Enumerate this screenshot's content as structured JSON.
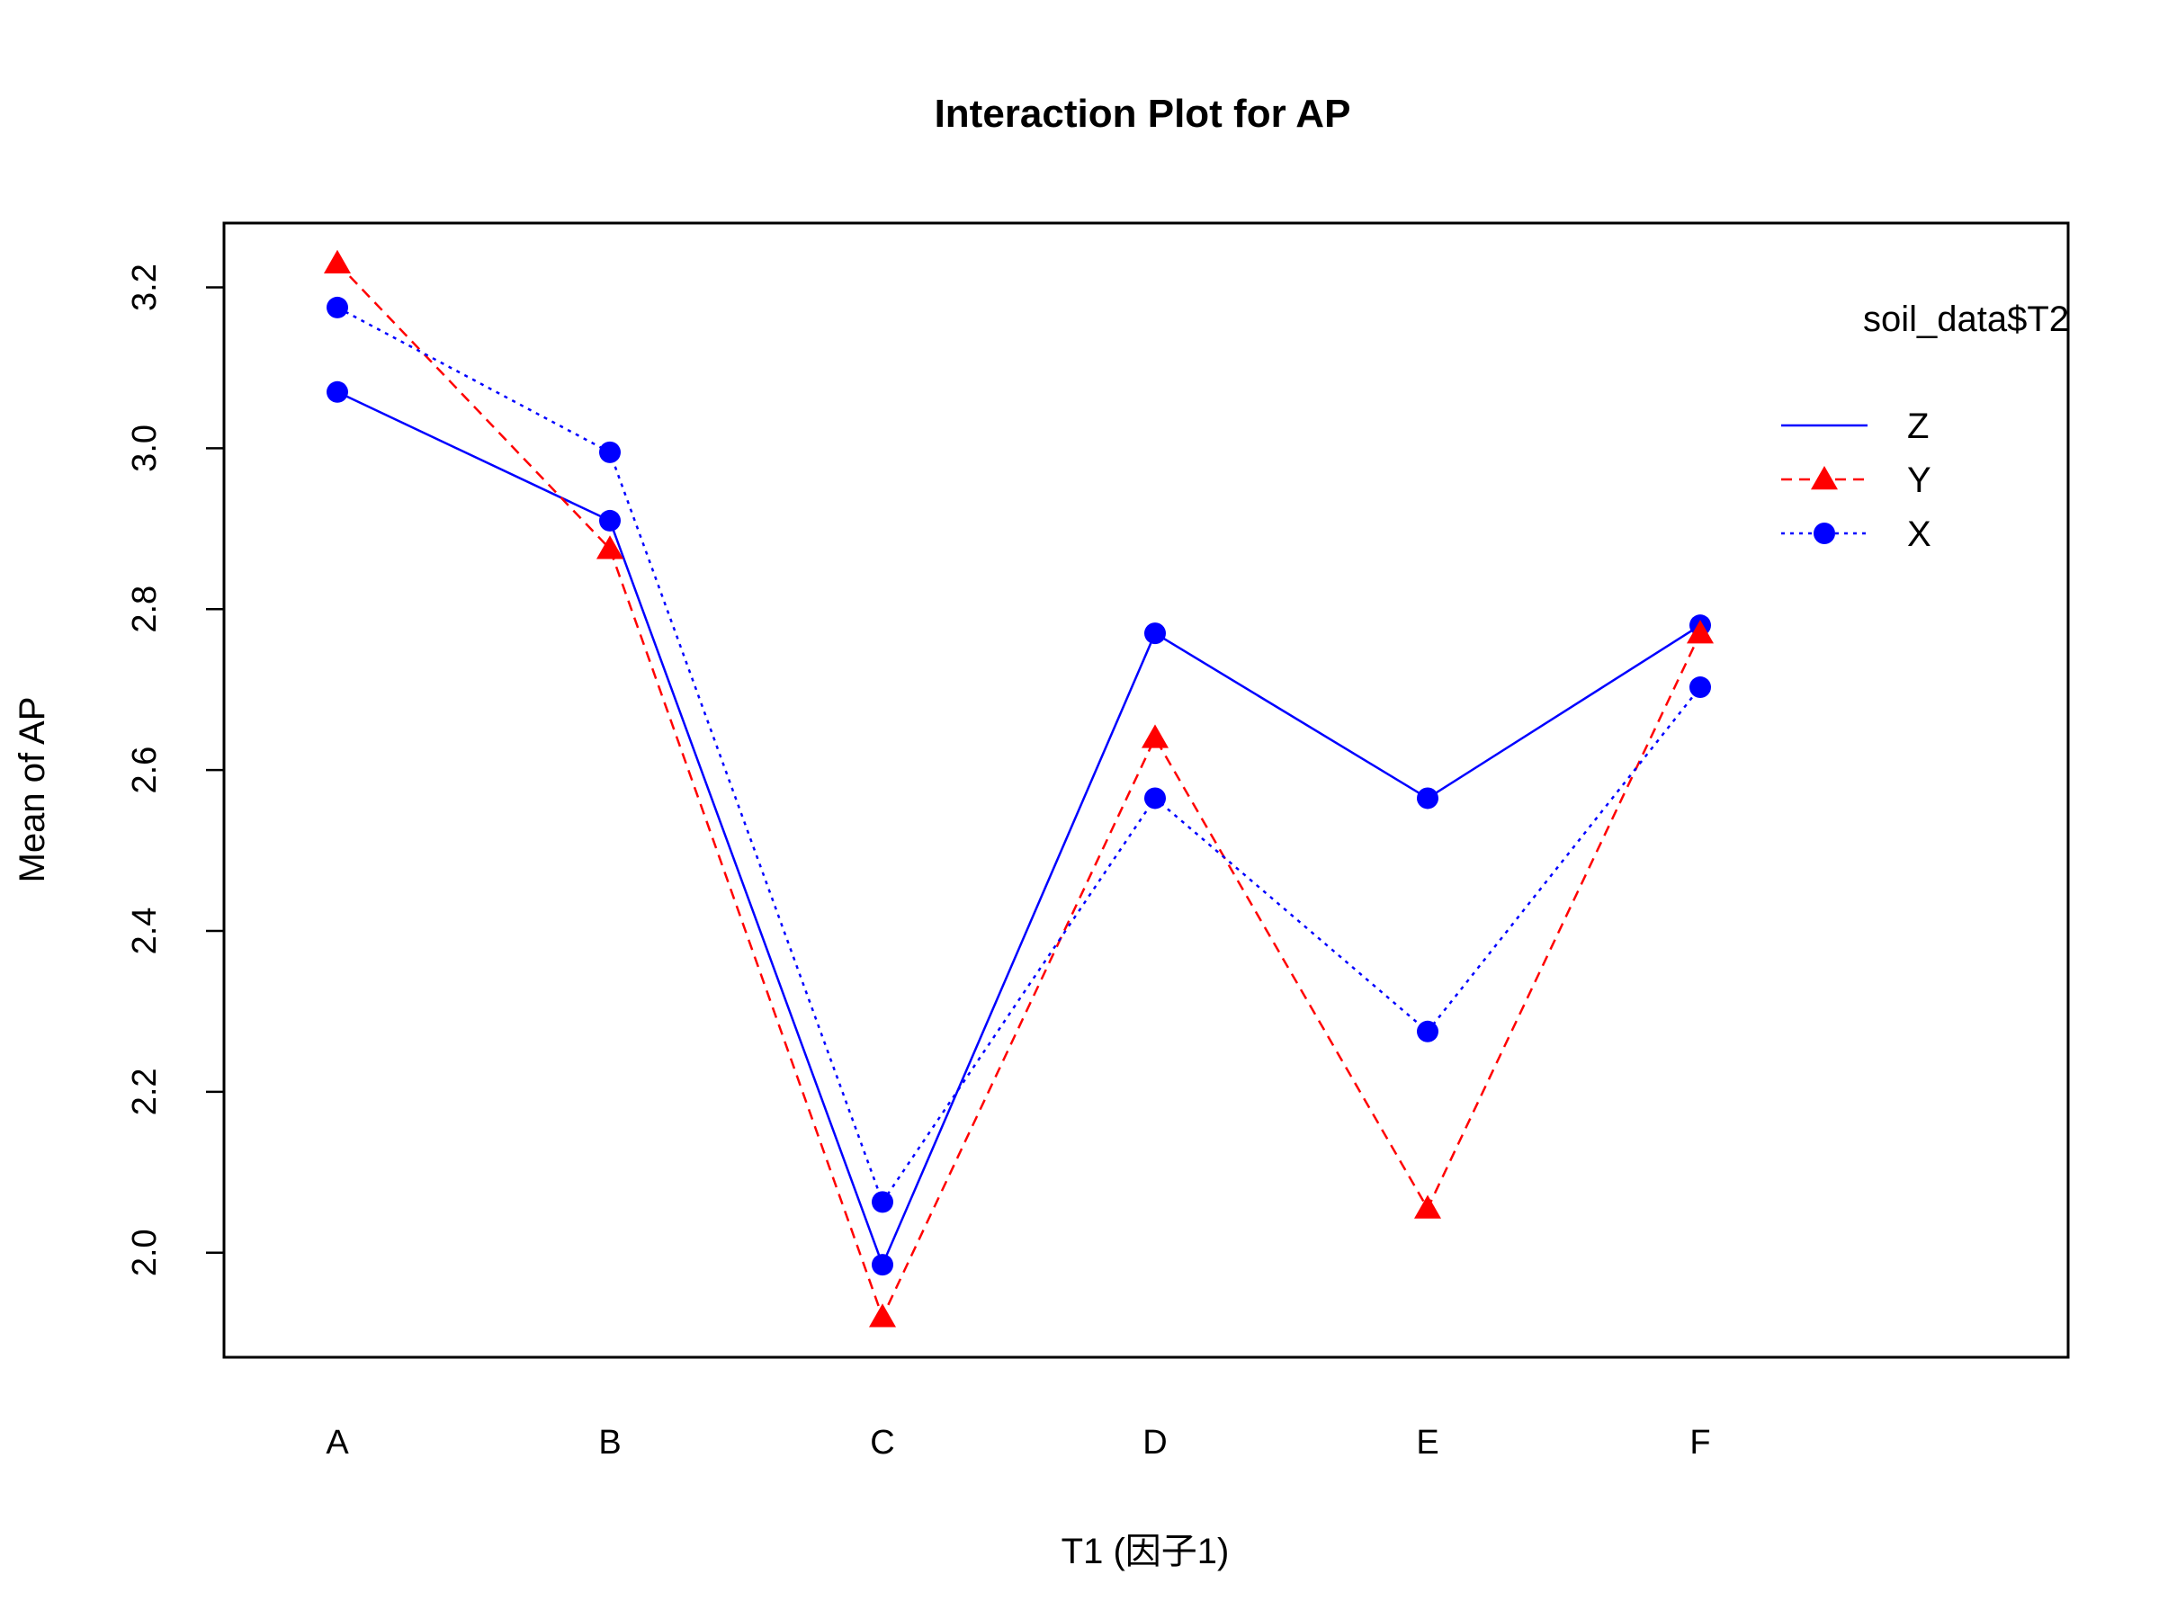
{
  "chart_data": {
    "type": "line",
    "title": "Interaction Plot for AP",
    "xlabel": "T1 (因子1)",
    "ylabel": "Mean of AP",
    "categories": [
      "A",
      "B",
      "C",
      "D",
      "E",
      "F"
    ],
    "ylim": [
      1.87,
      3.28
    ],
    "yticks": [
      "2.0",
      "2.2",
      "2.4",
      "2.6",
      "2.8",
      "3.0",
      "3.2"
    ],
    "grid": false,
    "legend": {
      "title": "soil_data$T2",
      "placement": "top-right",
      "entries": [
        "Z",
        "Y",
        "X"
      ]
    },
    "series": [
      {
        "name": "Z",
        "values": [
          3.07,
          2.91,
          1.985,
          2.77,
          2.565,
          2.78
        ],
        "color": "#0000ff",
        "line": "solid",
        "marker": "circle"
      },
      {
        "name": "Y",
        "values": [
          3.23,
          2.875,
          1.92,
          2.64,
          2.055,
          2.77
        ],
        "color": "#ff0000",
        "line": "dashed",
        "marker": "triangle"
      },
      {
        "name": "X",
        "values": [
          3.175,
          2.995,
          2.063,
          2.565,
          2.275,
          2.703
        ],
        "color": "#0000ff",
        "line": "dotted",
        "marker": "circle"
      }
    ]
  }
}
